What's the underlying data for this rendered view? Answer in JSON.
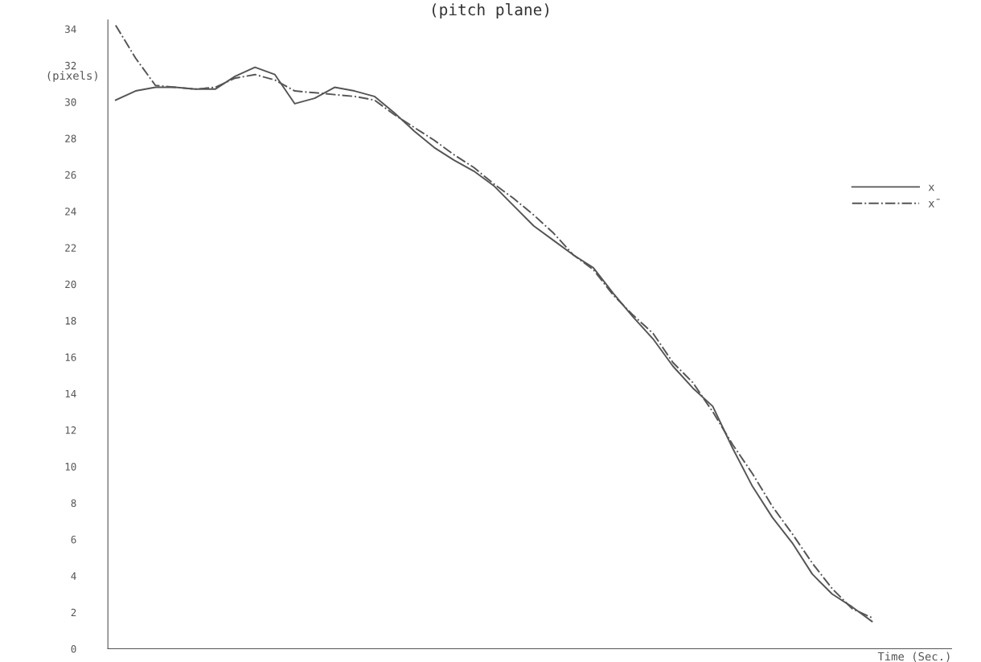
{
  "chart_data": {
    "type": "line",
    "title": "(pitch plane)",
    "xlabel": "Time (Sec.)",
    "ylabel": "(pixels)",
    "categories": [
      null,
      null,
      null,
      null,
      null,
      null,
      null,
      null,
      null,
      null,
      null,
      null,
      null,
      null,
      null,
      null,
      null,
      null,
      null,
      null,
      null,
      null,
      null,
      null,
      null,
      null,
      null,
      null,
      null,
      null,
      null,
      null,
      null,
      null,
      null,
      null,
      null,
      null,
      null
    ],
    "series": [
      {
        "name": "x",
        "color": "#555555",
        "line_style": "solid",
        "values": [
          30.1,
          30.6,
          30.8,
          30.8,
          30.7,
          30.7,
          31.4,
          31.9,
          31.5,
          29.9,
          30.2,
          30.8,
          30.6,
          30.3,
          29.4,
          28.4,
          27.5,
          26.8,
          26.2,
          25.4,
          24.3,
          23.2,
          22.4,
          21.6,
          20.9,
          19.5,
          18.2,
          17.0,
          15.5,
          14.3,
          13.3,
          11.0,
          8.9,
          7.2,
          5.8,
          4.1,
          3.0,
          2.3,
          1.5
        ]
      },
      {
        "name": "x̄",
        "color": "#555555",
        "line_style": "dashdot",
        "values": [
          34.2,
          32.4,
          30.9,
          30.8,
          30.7,
          30.8,
          31.3,
          31.5,
          31.2,
          30.6,
          30.5,
          30.4,
          30.3,
          30.1,
          29.3,
          28.6,
          27.9,
          27.1,
          26.4,
          25.5,
          24.7,
          23.8,
          22.8,
          21.6,
          20.8,
          19.4,
          18.3,
          17.3,
          15.7,
          14.6,
          13.0,
          11.2,
          9.6,
          7.8,
          6.3,
          4.7,
          3.3,
          2.2,
          1.7
        ]
      }
    ],
    "ylim": [
      0,
      34.5
    ],
    "yticks": [
      0,
      2,
      4,
      6,
      8,
      10,
      12,
      14,
      16,
      18,
      20,
      22,
      24,
      26,
      28,
      30,
      32,
      34
    ],
    "tick_labels": "y",
    "grid": false,
    "legend": "right",
    "marker": "none"
  }
}
